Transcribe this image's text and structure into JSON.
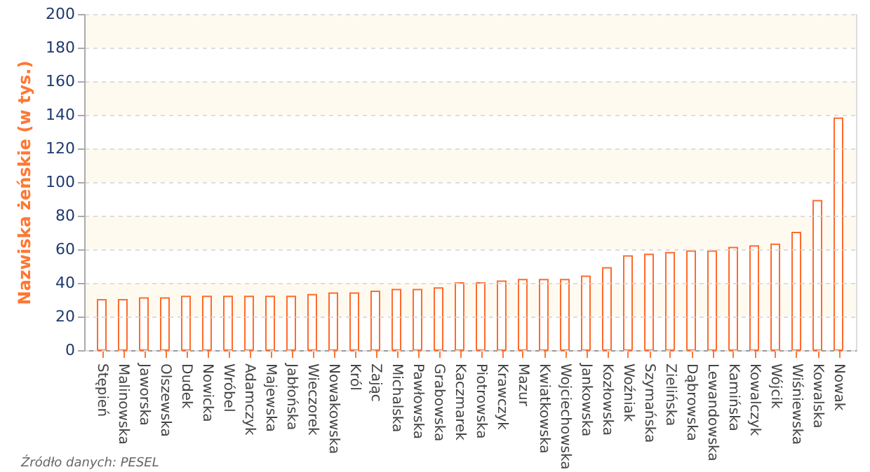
{
  "chart_data": {
    "type": "bar",
    "ylabel": "Nazwiska żeńskie (w tys.)",
    "categories": [
      "Stępień",
      "Malinowska",
      "Jaworska",
      "Olszewska",
      "Dudek",
      "Nowicka",
      "Wróbel",
      "Adamczyk",
      "Majewska",
      "Jabłońska",
      "Wieczorek",
      "Nowakowska",
      "Król",
      "Zając",
      "Michalska",
      "Pawłowska",
      "Grabowska",
      "Kaczmarek",
      "Piotrowska",
      "Krawczyk",
      "Mazur",
      "Kwiatkowska",
      "Wojciechowska",
      "Jankowska",
      "Kozłowska",
      "Woźniak",
      "Szymańska",
      "Zielińska",
      "Dąbrowska",
      "Lewandowska",
      "Kamińska",
      "Kowalczyk",
      "Wójcik",
      "Wiśniewska",
      "Kowalska",
      "Nowak"
    ],
    "values": [
      30,
      30,
      31,
      31,
      32,
      32,
      32,
      32,
      32,
      32,
      33,
      34,
      34,
      35,
      36,
      36,
      37,
      40,
      40,
      41,
      42,
      42,
      42,
      44,
      49,
      56,
      57,
      58,
      59,
      59,
      61,
      62,
      63,
      70,
      89,
      138
    ],
    "color": "#ff6b2b",
    "ylim": [
      0,
      200
    ],
    "yticks": [
      0,
      20,
      40,
      60,
      80,
      100,
      120,
      140,
      160,
      180,
      200
    ],
    "grid": "y",
    "annotations": [
      "Źródło danych: PESEL"
    ]
  }
}
